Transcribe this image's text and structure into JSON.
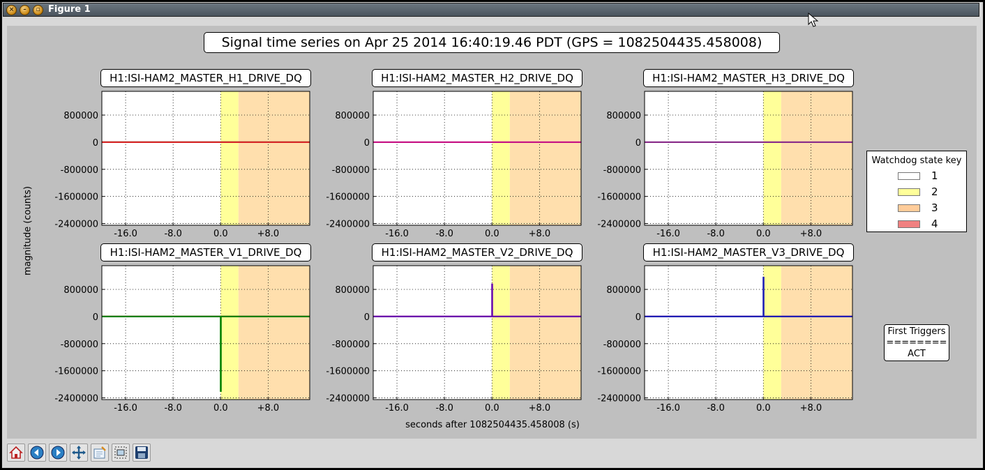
{
  "window": {
    "title": "Figure 1",
    "buttons": [
      {
        "name": "close",
        "glyph": "×"
      },
      {
        "name": "minimize",
        "glyph": "–"
      },
      {
        "name": "maximize",
        "glyph": "▫"
      }
    ]
  },
  "figure": {
    "title": "Signal time series on Apr 25 2014 16:40:19.46 PDT (GPS = 1082504435.458008)",
    "ylabel": "magnitude (counts)",
    "xlabel": "seconds after 1082504435.458008 (s)"
  },
  "legend": {
    "title": "Watchdog state key",
    "items": [
      {
        "label": "1",
        "color": "#ffffff"
      },
      {
        "label": "2",
        "color": "#ffff99"
      },
      {
        "label": "3",
        "color": "#ffcc99"
      },
      {
        "label": "4",
        "color": "#f08080"
      }
    ]
  },
  "first_triggers": {
    "title": "First Triggers",
    "separator": "========",
    "value": "ACT"
  },
  "toolbar": [
    {
      "name": "home",
      "icon": "home-icon"
    },
    {
      "name": "back",
      "icon": "back-arrow-icon"
    },
    {
      "name": "forward",
      "icon": "forward-arrow-icon"
    },
    {
      "name": "pan",
      "icon": "pan-icon"
    },
    {
      "name": "configure",
      "icon": "configure-icon"
    },
    {
      "name": "zoom",
      "icon": "zoom-rect-icon"
    },
    {
      "name": "save",
      "icon": "save-icon"
    }
  ],
  "chart_data": [
    {
      "type": "line",
      "title": "H1:ISI-HAM2_MASTER_H1_DRIVE_DQ",
      "xlim": [
        -20,
        15
      ],
      "ylim": [
        -2450000,
        1500000
      ],
      "xticks": [
        "-16.0",
        "-8.0",
        "0.0",
        "+8.0"
      ],
      "yticks": [
        "800000",
        "0",
        "-800000",
        "-1600000",
        "-2400000"
      ],
      "states": [
        {
          "state": 2,
          "from": 0,
          "to": 3
        },
        {
          "state": 3,
          "from": 3,
          "to": 15
        }
      ],
      "series": [
        {
          "color": "#2ca02c",
          "x": [
            -20,
            15
          ],
          "y": [
            0,
            0
          ]
        },
        {
          "color": "#d62728",
          "x": [
            -20,
            15
          ],
          "y": [
            0,
            0
          ]
        }
      ]
    },
    {
      "type": "line",
      "title": "H1:ISI-HAM2_MASTER_H2_DRIVE_DQ",
      "xlim": [
        -20,
        15
      ],
      "ylim": [
        -2450000,
        1500000
      ],
      "xticks": [
        "-16.0",
        "-8.0",
        "0.0",
        "+8.0"
      ],
      "yticks": [
        "800000",
        "0",
        "-800000",
        "-1600000",
        "-2400000"
      ],
      "states": [
        {
          "state": 2,
          "from": 0,
          "to": 3
        },
        {
          "state": 3,
          "from": 3,
          "to": 15
        }
      ],
      "series": [
        {
          "color": "#c71585",
          "x": [
            -20,
            15
          ],
          "y": [
            0,
            0
          ]
        }
      ]
    },
    {
      "type": "line",
      "title": "H1:ISI-HAM2_MASTER_H3_DRIVE_DQ",
      "xlim": [
        -20,
        15
      ],
      "ylim": [
        -2450000,
        1500000
      ],
      "xticks": [
        "-16.0",
        "-8.0",
        "0.0",
        "+8.0"
      ],
      "yticks": [
        "800000",
        "0",
        "-800000",
        "-1600000",
        "-2400000"
      ],
      "states": [
        {
          "state": 2,
          "from": 0,
          "to": 3
        },
        {
          "state": 3,
          "from": 3,
          "to": 15
        }
      ],
      "series": [
        {
          "color": "#8b2f8b",
          "x": [
            -20,
            15
          ],
          "y": [
            0,
            0
          ]
        }
      ]
    },
    {
      "type": "line",
      "title": "H1:ISI-HAM2_MASTER_V1_DRIVE_DQ",
      "xlim": [
        -20,
        15
      ],
      "ylim": [
        -2450000,
        1500000
      ],
      "xticks": [
        "-16.0",
        "-8.0",
        "0.0",
        "+8.0"
      ],
      "yticks": [
        "800000",
        "0",
        "-800000",
        "-1600000",
        "-2400000"
      ],
      "states": [
        {
          "state": 2,
          "from": 0,
          "to": 3
        },
        {
          "state": 3,
          "from": 3,
          "to": 15
        }
      ],
      "series": [
        {
          "color": "#d62728",
          "x": [
            -20,
            15
          ],
          "y": [
            0,
            0
          ]
        },
        {
          "color": "#008000",
          "x": [
            -20,
            0,
            0,
            0.05,
            0.05,
            15
          ],
          "y": [
            0,
            0,
            -2200000,
            -2200000,
            0,
            0
          ]
        }
      ]
    },
    {
      "type": "line",
      "title": "H1:ISI-HAM2_MASTER_V2_DRIVE_DQ",
      "xlim": [
        -20,
        15
      ],
      "ylim": [
        -2450000,
        1500000
      ],
      "xticks": [
        "-16.0",
        "-8.0",
        "0.0",
        "+8.0"
      ],
      "yticks": [
        "800000",
        "0",
        "-800000",
        "-1600000",
        "-2400000"
      ],
      "states": [
        {
          "state": 2,
          "from": 0,
          "to": 3
        },
        {
          "state": 3,
          "from": 3,
          "to": 15
        }
      ],
      "series": [
        {
          "color": "#c71585",
          "x": [
            -20,
            15
          ],
          "y": [
            0,
            0
          ]
        },
        {
          "color": "#6a0dad",
          "x": [
            -20,
            0,
            0,
            0.05,
            0.05,
            15
          ],
          "y": [
            0,
            0,
            950000,
            950000,
            0,
            0
          ]
        }
      ]
    },
    {
      "type": "line",
      "title": "H1:ISI-HAM2_MASTER_V3_DRIVE_DQ",
      "xlim": [
        -20,
        15
      ],
      "ylim": [
        -2450000,
        1500000
      ],
      "xticks": [
        "-16.0",
        "-8.0",
        "0.0",
        "+8.0"
      ],
      "yticks": [
        "800000",
        "0",
        "-800000",
        "-1600000",
        "-2400000"
      ],
      "states": [
        {
          "state": 2,
          "from": 0,
          "to": 3
        },
        {
          "state": 3,
          "from": 3,
          "to": 15
        }
      ],
      "series": [
        {
          "color": "#c71585",
          "x": [
            -20,
            15
          ],
          "y": [
            0,
            0
          ]
        },
        {
          "color": "#1f1fb4",
          "x": [
            -20,
            0,
            0,
            0.05,
            0.05,
            15
          ],
          "y": [
            0,
            0,
            1150000,
            1150000,
            0,
            0
          ]
        }
      ]
    }
  ]
}
